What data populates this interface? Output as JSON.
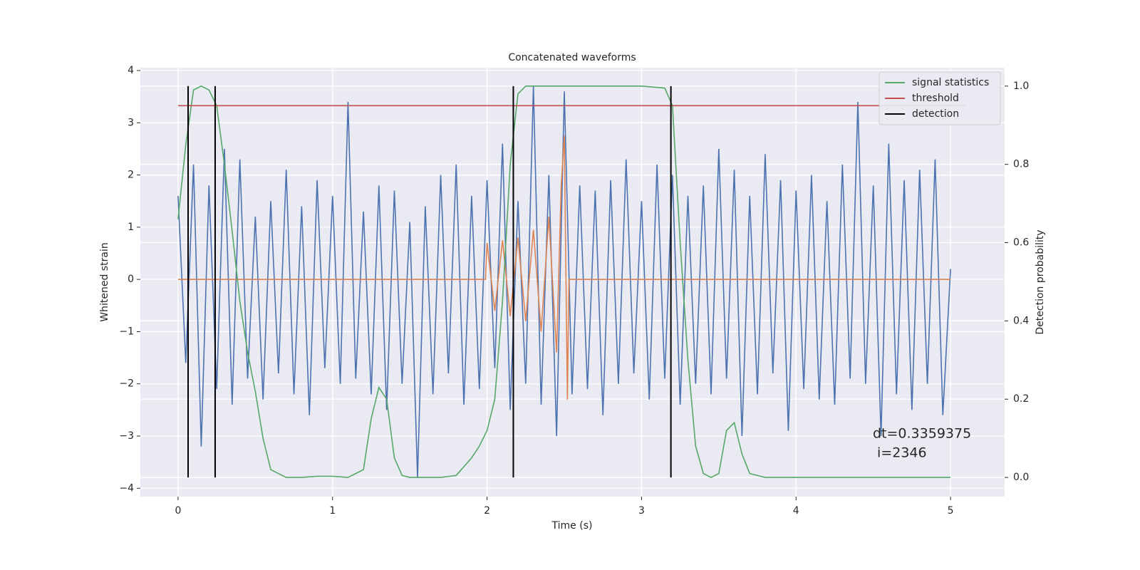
{
  "chart_data": {
    "type": "line",
    "title": "Concatenated waveforms",
    "xlabel": "Time (s)",
    "ylabel": "Whitened strain",
    "y2label": "Detection probability",
    "xlim": [
      -0.244,
      5.35
    ],
    "ylim": [
      -4.16,
      4.055
    ],
    "y2lim": [
      -0.049,
      1.047
    ],
    "xticks": [
      0,
      1,
      2,
      3,
      4,
      5
    ],
    "yticks": [
      {
        "value": -4,
        "label": "−4"
      },
      {
        "value": -3,
        "label": "−3"
      },
      {
        "value": -2,
        "label": "−2"
      },
      {
        "value": -1,
        "label": "−1"
      },
      0,
      1,
      2,
      3,
      4
    ],
    "y2ticks": [
      {
        "value": 0,
        "label": "0.0"
      },
      0.2,
      0.4,
      0.6,
      0.8,
      {
        "value": 1,
        "label": "1.0"
      }
    ],
    "grid": true,
    "legend": "upper right",
    "annotation": [
      "dt=0.3359375",
      " i=2346"
    ],
    "series": [
      {
        "color": "#4c72b0",
        "x": [
          0,
          0.05,
          0.1,
          0.15,
          0.2,
          0.25,
          0.3,
          0.35,
          0.4,
          0.45,
          0.5,
          0.55,
          0.6,
          0.65,
          0.7,
          0.75,
          0.8,
          0.85,
          0.9,
          0.95,
          1,
          1.05,
          1.1,
          1.15,
          1.2,
          1.25,
          1.3,
          1.35,
          1.4,
          1.45,
          1.5,
          1.55,
          1.6,
          1.65,
          1.7,
          1.75,
          1.8,
          1.85,
          1.9,
          1.95,
          2,
          2.05,
          2.1,
          2.15,
          2.2,
          2.25,
          2.3,
          2.35,
          2.4,
          2.45,
          2.5,
          2.55,
          2.6,
          2.65,
          2.7,
          2.75,
          2.8,
          2.85,
          2.9,
          2.95,
          3,
          3.05,
          3.1,
          3.15,
          3.2,
          3.25,
          3.3,
          3.35,
          3.4,
          3.45,
          3.5,
          3.55,
          3.6,
          3.65,
          3.7,
          3.75,
          3.8,
          3.85,
          3.9,
          3.95,
          4,
          4.05,
          4.1,
          4.15,
          4.2,
          4.25,
          4.3,
          4.35,
          4.4,
          4.45,
          4.5,
          4.55,
          4.6,
          4.65,
          4.7,
          4.75,
          4.8,
          4.85,
          4.9,
          4.95,
          5
        ],
        "values": [
          1.6,
          -1.6,
          2.2,
          -3.2,
          1.8,
          -2.1,
          2.5,
          -2.4,
          2.3,
          -1.9,
          1.2,
          -2.3,
          1.5,
          -1.8,
          2.1,
          -2.2,
          1.4,
          -2.6,
          1.9,
          -1.7,
          1.6,
          -2.0,
          3.4,
          -1.9,
          1.3,
          -2.2,
          1.8,
          -2.5,
          1.7,
          -2.0,
          1.1,
          -3.8,
          1.4,
          -2.2,
          2.0,
          -1.8,
          2.2,
          -2.4,
          1.6,
          -2.1,
          1.9,
          -1.7,
          2.6,
          -2.5,
          1.5,
          -2.0,
          3.7,
          -2.4,
          2.0,
          -3.0,
          3.6,
          -2.2,
          1.8,
          -2.1,
          1.7,
          -2.6,
          1.9,
          -2.0,
          2.3,
          -1.8,
          1.5,
          -2.3,
          2.2,
          -1.9,
          2.0,
          -2.4,
          1.6,
          -2.0,
          1.8,
          -2.2,
          2.5,
          -1.9,
          2.1,
          -3.0,
          1.6,
          -2.2,
          2.4,
          -1.8,
          1.9,
          -2.9,
          1.7,
          -2.1,
          2.0,
          -2.3,
          1.5,
          -2.4,
          2.2,
          -1.9,
          3.4,
          -2.0,
          1.8,
          -3.0,
          2.6,
          -2.2,
          1.9,
          -2.5,
          2.1,
          -2.0,
          2.3,
          -2.6,
          0.2
        ]
      },
      {
        "color": "#dd8452",
        "x": [
          0,
          1.99,
          2.0,
          2.05,
          2.1,
          2.15,
          2.2,
          2.25,
          2.3,
          2.35,
          2.4,
          2.45,
          2.48,
          2.5,
          2.52,
          2.53,
          5.0
        ],
        "values": [
          0,
          0,
          0.7,
          -0.6,
          0.75,
          -0.7,
          0.8,
          -0.8,
          0.95,
          -1.0,
          1.2,
          -1.4,
          1.8,
          2.75,
          -2.3,
          0,
          0
        ]
      },
      {
        "name": "signal statistics",
        "color": "#55a868",
        "axis": "y2",
        "x": [
          0,
          0.05,
          0.1,
          0.15,
          0.2,
          0.25,
          0.3,
          0.35,
          0.4,
          0.45,
          0.5,
          0.55,
          0.6,
          0.7,
          0.8,
          0.9,
          1.0,
          1.1,
          1.2,
          1.25,
          1.3,
          1.35,
          1.4,
          1.45,
          1.5,
          1.6,
          1.7,
          1.8,
          1.9,
          1.95,
          2.0,
          2.05,
          2.1,
          2.15,
          2.2,
          2.25,
          2.3,
          2.5,
          3.0,
          3.15,
          3.2,
          3.25,
          3.3,
          3.35,
          3.4,
          3.45,
          3.5,
          3.55,
          3.6,
          3.65,
          3.7,
          3.8,
          4.0,
          4.5,
          5.0
        ],
        "values": [
          0.66,
          0.85,
          0.99,
          1.0,
          0.99,
          0.95,
          0.8,
          0.63,
          0.45,
          0.32,
          0.22,
          0.1,
          0.02,
          0,
          0,
          0.003,
          0.003,
          0,
          0.02,
          0.15,
          0.23,
          0.2,
          0.05,
          0.005,
          0,
          0,
          0,
          0.005,
          0.05,
          0.08,
          0.12,
          0.2,
          0.45,
          0.8,
          0.98,
          1.0,
          1.0,
          1.0,
          1.0,
          0.995,
          0.95,
          0.6,
          0.3,
          0.08,
          0.01,
          0,
          0.01,
          0.12,
          0.14,
          0.06,
          0.01,
          0,
          0,
          0,
          0
        ]
      },
      {
        "name": "threshold",
        "color": "#c44e52",
        "axis": "y2",
        "x": [
          0,
          5.1
        ],
        "values": [
          0.95,
          0.95
        ]
      },
      {
        "name": "detection",
        "color": "#000000",
        "axis": "y2",
        "x": [
          0.065,
          0.24,
          2.17,
          3.19
        ],
        "ymin": 0,
        "ymax": 1
      }
    ]
  }
}
